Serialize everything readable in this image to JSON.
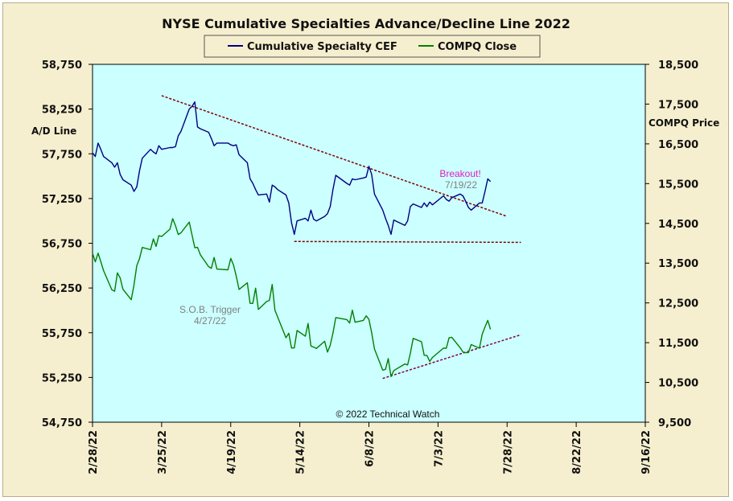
{
  "chart_data": {
    "type": "line",
    "title": "NYSE Cumulative  Specialties  Advance/Decline  Line 2022",
    "ylabel_left": "A/D Line",
    "ylabel_right": "COMPQ Price",
    "ylim_left": [
      54750,
      58750
    ],
    "ylim_right": [
      9500,
      18500
    ],
    "yticks_left": [
      "58,750",
      "58,250",
      "57,750",
      "57,250",
      "56,750",
      "56,250",
      "55,750",
      "55,250",
      "54,750"
    ],
    "yticks_right": [
      "18,500",
      "17,500",
      "16,500",
      "15,500",
      "14,500",
      "13,500",
      "12,500",
      "11,500",
      "10,500",
      "9,500"
    ],
    "xticks": [
      "2/28/22",
      "3/25/22",
      "4/19/22",
      "5/14/22",
      "6/8/22",
      "7/3/22",
      "7/28/22",
      "8/22/22",
      "9/16/22"
    ],
    "x_start": "2022-02-28",
    "x_end": "2022-09-16",
    "copyright": "© 2022 Technical Watch",
    "colors": {
      "plot_bg": "#ccffff",
      "frame_bg": "#f6efcf",
      "ad_line": "#000080",
      "compq_line": "#008000",
      "trend": "#800000",
      "support": "#800040"
    },
    "series": [
      {
        "name": "Cumulative Specialty CEF",
        "axis": "left",
        "color": "#000080",
        "x": [
          "2022-02-28",
          "2022-03-01",
          "2022-03-02",
          "2022-03-03",
          "2022-03-04",
          "2022-03-07",
          "2022-03-08",
          "2022-03-09",
          "2022-03-10",
          "2022-03-11",
          "2022-03-14",
          "2022-03-15",
          "2022-03-16",
          "2022-03-17",
          "2022-03-18",
          "2022-03-21",
          "2022-03-22",
          "2022-03-23",
          "2022-03-24",
          "2022-03-25",
          "2022-03-28",
          "2022-03-29",
          "2022-03-30",
          "2022-03-31",
          "2022-04-01",
          "2022-04-04",
          "2022-04-05",
          "2022-04-06",
          "2022-04-07",
          "2022-04-08",
          "2022-04-11",
          "2022-04-12",
          "2022-04-13",
          "2022-04-14",
          "2022-04-18",
          "2022-04-19",
          "2022-04-20",
          "2022-04-21",
          "2022-04-22",
          "2022-04-25",
          "2022-04-26",
          "2022-04-27",
          "2022-04-28",
          "2022-04-29",
          "2022-05-02",
          "2022-05-03",
          "2022-05-04",
          "2022-05-05",
          "2022-05-06",
          "2022-05-09",
          "2022-05-10",
          "2022-05-11",
          "2022-05-12",
          "2022-05-13",
          "2022-05-16",
          "2022-05-17",
          "2022-05-18",
          "2022-05-19",
          "2022-05-20",
          "2022-05-23",
          "2022-05-24",
          "2022-05-25",
          "2022-05-26",
          "2022-05-27",
          "2022-05-31",
          "2022-06-01",
          "2022-06-02",
          "2022-06-03",
          "2022-06-06",
          "2022-06-07",
          "2022-06-08",
          "2022-06-09",
          "2022-06-10",
          "2022-06-13",
          "2022-06-14",
          "2022-06-15",
          "2022-06-16",
          "2022-06-17",
          "2022-06-21",
          "2022-06-22",
          "2022-06-23",
          "2022-06-24",
          "2022-06-27",
          "2022-06-28",
          "2022-06-29",
          "2022-06-30",
          "2022-07-01",
          "2022-07-05",
          "2022-07-06",
          "2022-07-07",
          "2022-07-08",
          "2022-07-11",
          "2022-07-12",
          "2022-07-13",
          "2022-07-14",
          "2022-07-15",
          "2022-07-18",
          "2022-07-19",
          "2022-07-20",
          "2022-07-21",
          "2022-07-22"
        ],
        "values": [
          57760,
          57720,
          57870,
          57800,
          57720,
          57650,
          57600,
          57650,
          57520,
          57460,
          57400,
          57330,
          57380,
          57560,
          57700,
          57800,
          57770,
          57750,
          57840,
          57800,
          57820,
          57820,
          57830,
          57950,
          58000,
          58250,
          58280,
          58330,
          58050,
          58030,
          57990,
          57920,
          57840,
          57870,
          57870,
          57850,
          57840,
          57850,
          57740,
          57650,
          57470,
          57420,
          57350,
          57290,
          57300,
          57210,
          57400,
          57380,
          57350,
          57290,
          57200,
          56980,
          56850,
          57000,
          57030,
          57000,
          57120,
          57020,
          57000,
          57050,
          57080,
          57160,
          57350,
          57510,
          57420,
          57400,
          57470,
          57460,
          57480,
          57490,
          57610,
          57520,
          57300,
          57120,
          57030,
          56950,
          56850,
          57010,
          56950,
          57000,
          57160,
          57190,
          57150,
          57200,
          57160,
          57210,
          57180,
          57280,
          57240,
          57220,
          57260,
          57300,
          57280,
          57220,
          57150,
          57120,
          57200,
          57200,
          57330,
          57470,
          57440
        ]
      },
      {
        "name": "COMPQ Close",
        "axis": "right",
        "color": "#008000",
        "x": [
          "2022-02-28",
          "2022-03-01",
          "2022-03-02",
          "2022-03-03",
          "2022-03-04",
          "2022-03-07",
          "2022-03-08",
          "2022-03-09",
          "2022-03-10",
          "2022-03-11",
          "2022-03-14",
          "2022-03-15",
          "2022-03-16",
          "2022-03-17",
          "2022-03-18",
          "2022-03-21",
          "2022-03-22",
          "2022-03-23",
          "2022-03-24",
          "2022-03-25",
          "2022-03-28",
          "2022-03-29",
          "2022-03-30",
          "2022-03-31",
          "2022-04-01",
          "2022-04-04",
          "2022-04-05",
          "2022-04-06",
          "2022-04-07",
          "2022-04-08",
          "2022-04-11",
          "2022-04-12",
          "2022-04-13",
          "2022-04-14",
          "2022-04-18",
          "2022-04-19",
          "2022-04-20",
          "2022-04-21",
          "2022-04-22",
          "2022-04-25",
          "2022-04-26",
          "2022-04-27",
          "2022-04-28",
          "2022-04-29",
          "2022-05-02",
          "2022-05-03",
          "2022-05-04",
          "2022-05-05",
          "2022-05-06",
          "2022-05-09",
          "2022-05-10",
          "2022-05-11",
          "2022-05-12",
          "2022-05-13",
          "2022-05-16",
          "2022-05-17",
          "2022-05-18",
          "2022-05-19",
          "2022-05-20",
          "2022-05-23",
          "2022-05-24",
          "2022-05-25",
          "2022-05-26",
          "2022-05-27",
          "2022-05-31",
          "2022-06-01",
          "2022-06-02",
          "2022-06-03",
          "2022-06-06",
          "2022-06-07",
          "2022-06-08",
          "2022-06-09",
          "2022-06-10",
          "2022-06-13",
          "2022-06-14",
          "2022-06-15",
          "2022-06-16",
          "2022-06-17",
          "2022-06-21",
          "2022-06-22",
          "2022-06-23",
          "2022-06-24",
          "2022-06-27",
          "2022-06-28",
          "2022-06-29",
          "2022-06-30",
          "2022-07-01",
          "2022-07-05",
          "2022-07-06",
          "2022-07-07",
          "2022-07-08",
          "2022-07-11",
          "2022-07-12",
          "2022-07-13",
          "2022-07-14",
          "2022-07-15",
          "2022-07-18",
          "2022-07-19",
          "2022-07-20",
          "2022-07-21",
          "2022-07-22"
        ],
        "values": [
          13751,
          13532,
          13752,
          13537,
          13313,
          12830,
          12795,
          13256,
          13130,
          12843,
          12581,
          12948,
          13437,
          13614,
          13894,
          13838,
          14109,
          13922,
          14191,
          14169,
          14354,
          14619,
          14442,
          14220,
          14262,
          14532,
          14204,
          13888,
          13897,
          13711,
          13411,
          13372,
          13643,
          13351,
          13332,
          13619,
          13453,
          13174,
          12839,
          13004,
          12490,
          12488,
          12872,
          12335,
          12536,
          12563,
          12964,
          12318,
          12145,
          11623,
          11737,
          11364,
          11371,
          11805,
          11662,
          11984,
          11418,
          11389,
          11354,
          11535,
          11264,
          11434,
          11740,
          12131,
          12081,
          11994,
          12317,
          12013,
          12061,
          12175,
          12086,
          11754,
          11341,
          10809,
          10828,
          11099,
          10646,
          10798,
          10964,
          10941,
          11232,
          11608,
          11525,
          11182,
          11178,
          11029,
          11128,
          11362,
          11361,
          11621,
          11636,
          11372,
          11265,
          11248,
          11252,
          11452,
          11360,
          11713,
          11897,
          12060,
          11834
        ]
      }
    ]
  },
  "annotations": {
    "breakout_label": "Breakout!",
    "breakout_date": "7/19/22",
    "sob_label": "S.O.B. Trigger",
    "sob_date": "4/27/22"
  },
  "trendlines": {
    "ad_resistance": {
      "start": [
        "2022-03-25",
        58400
      ],
      "end": [
        "2022-07-28",
        57050
      ]
    },
    "ad_support": {
      "start": [
        "2022-05-12",
        56770
      ],
      "end": [
        "2022-08-02",
        56760
      ]
    },
    "compq_support": {
      "start": [
        "2022-06-13",
        10600
      ],
      "end": [
        "2022-08-02",
        11700
      ]
    }
  }
}
